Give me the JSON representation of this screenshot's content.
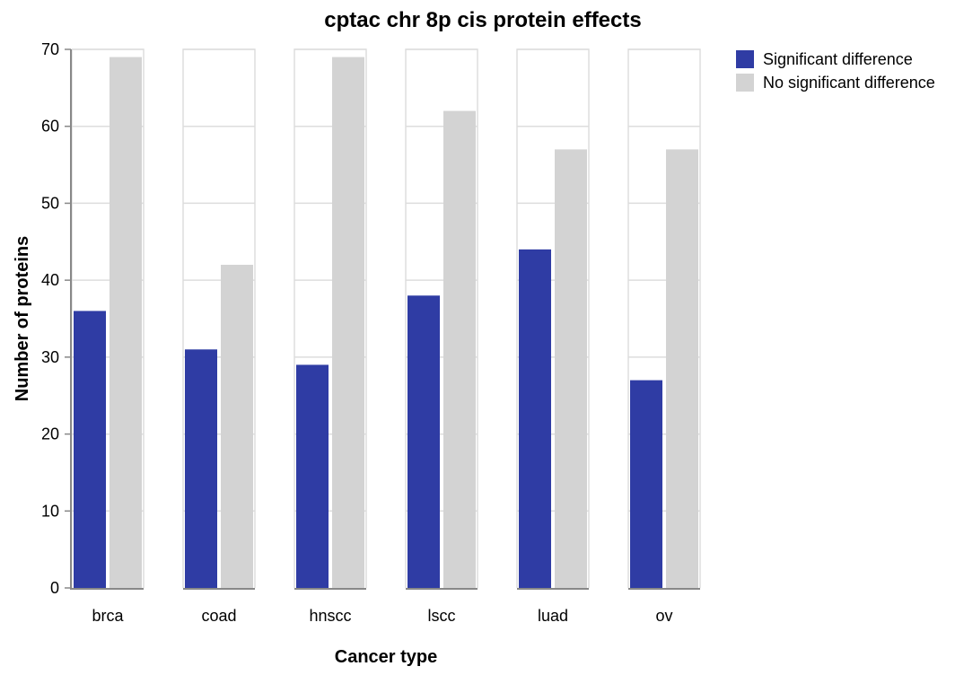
{
  "chart_data": {
    "type": "bar",
    "title": "cptac chr 8p cis protein effects",
    "xlabel": "Cancer type",
    "ylabel": "Number of proteins",
    "categories": [
      "brca",
      "coad",
      "hnscc",
      "lscc",
      "luad",
      "ov"
    ],
    "series": [
      {
        "name": "Significant difference",
        "color": "#2f3ca4",
        "values": [
          36,
          31,
          29,
          38,
          44,
          27
        ]
      },
      {
        "name": "No significant difference",
        "color": "#d3d3d3",
        "values": [
          69,
          42,
          69,
          62,
          57,
          57
        ]
      }
    ],
    "ylim": [
      0,
      70
    ],
    "yticks": [
      0,
      10,
      20,
      30,
      40,
      50,
      60,
      70
    ],
    "grid": true,
    "legend_position": "top-right"
  }
}
